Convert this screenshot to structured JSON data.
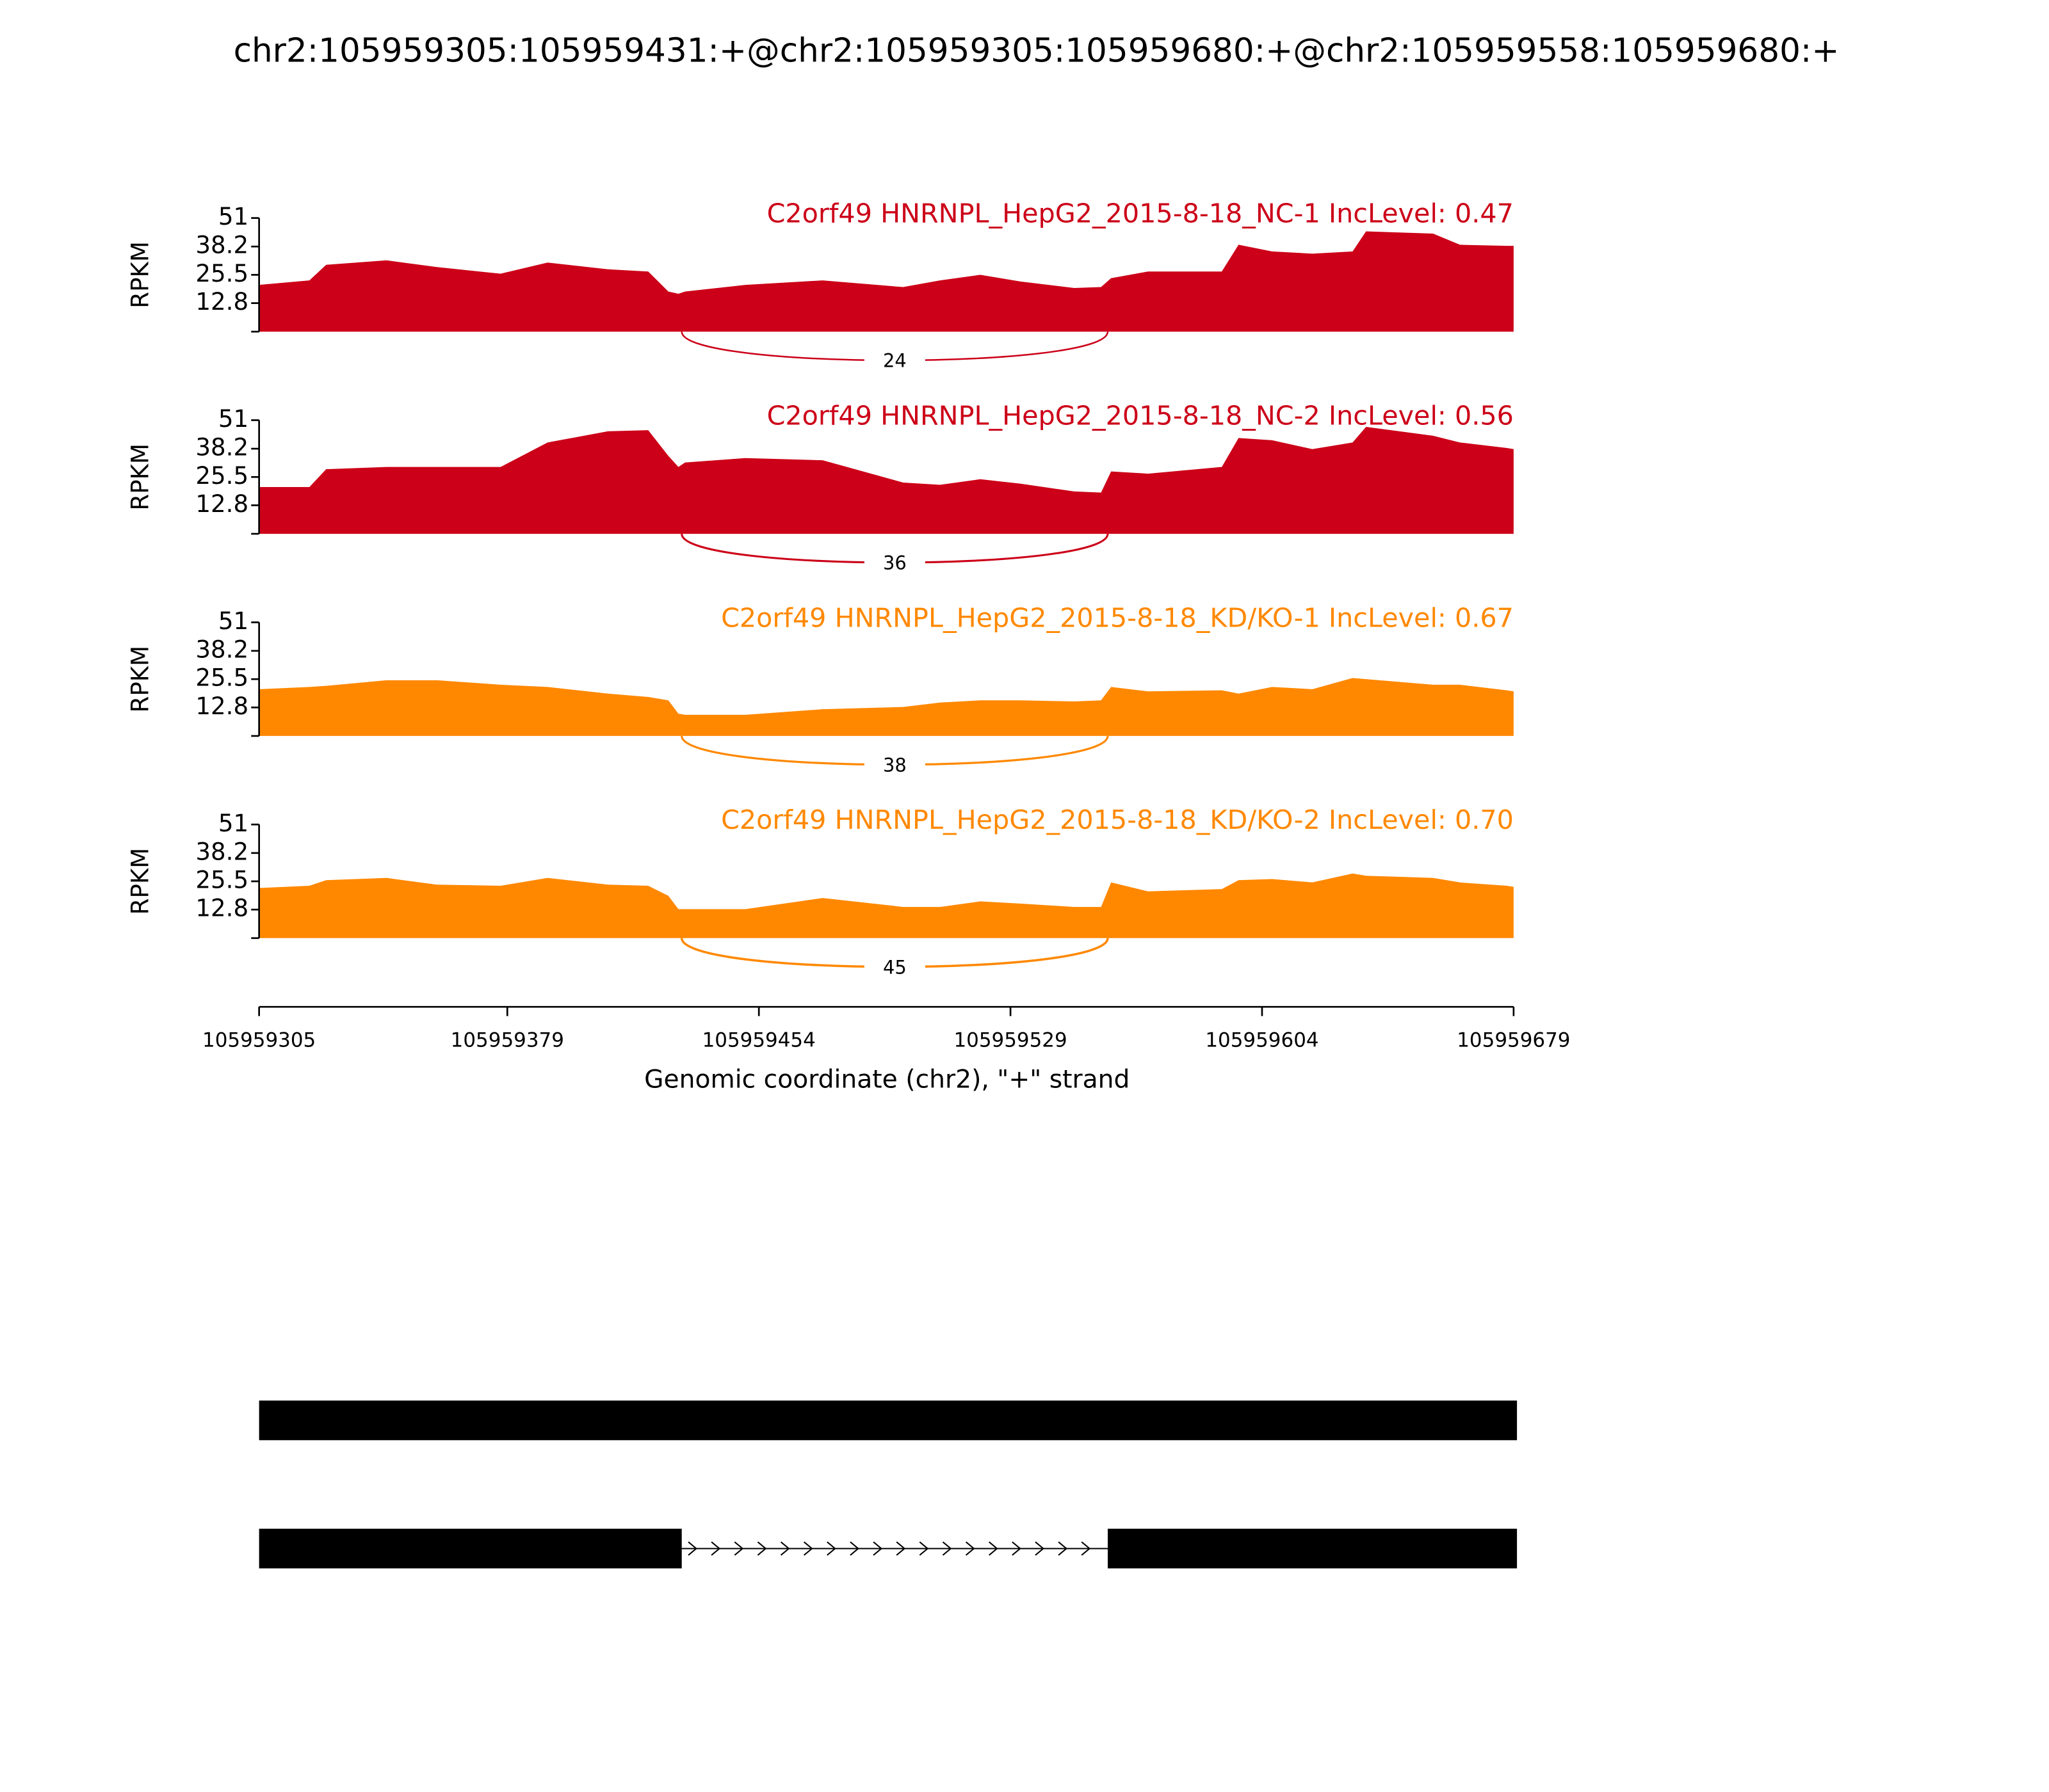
{
  "chart_data": {
    "type": "area",
    "title": "chr2:105959305:105959431:+@chr2:105959305:105959680:+@chr2:105959558:105959680:+",
    "xlabel": "Genomic coordinate (chr2), \"+\" strand",
    "ylabel": "RPKM",
    "x": [
      105959305,
      105959320,
      105959325,
      105959343,
      105959358,
      105959377,
      105959391,
      105959409,
      105959421,
      105959427,
      105959430,
      105959432,
      105959450,
      105959473,
      105959497,
      105959508,
      105959520,
      105959532,
      105959548,
      105959556,
      105959559,
      105959570,
      105959592,
      105959597,
      105959607,
      105959619,
      105959631,
      105959635,
      105959655,
      105959663,
      105959677,
      105959679
    ],
    "xlim": [
      105959305,
      105959679
    ],
    "xticks": [
      105959305,
      105959379,
      105959454,
      105959529,
      105959604,
      105959679
    ],
    "ylim": [
      0,
      51
    ],
    "yticks": [
      12.8,
      25.5,
      38.2,
      51
    ],
    "junction": {
      "start": 105959431,
      "end": 105959558
    },
    "series": [
      {
        "name": "C2orf49 HNRNPL_HepG2_2015-8-18_NC-1 IncLevel: 0.47",
        "color": "#cc0018",
        "junction_count": 24,
        "values": [
          21,
          23,
          30,
          32,
          29,
          26,
          31,
          28,
          27,
          18,
          17,
          18,
          21,
          23,
          20,
          23,
          25.5,
          22.5,
          19.6,
          20,
          24,
          27,
          27,
          39,
          36,
          35,
          36,
          45,
          44,
          39,
          38.5,
          38.5
        ]
      },
      {
        "name": "C2orf49 HNRNPL_HepG2_2015-8-18_NC-2 IncLevel: 0.56",
        "color": "#cc0018",
        "junction_count": 36,
        "values": [
          21,
          21,
          29,
          30,
          30,
          30,
          41,
          46,
          46.5,
          35,
          30,
          32,
          34,
          33,
          23,
          22,
          24.5,
          22.5,
          19,
          18.5,
          28,
          27,
          30,
          43,
          42,
          38,
          41,
          48,
          44,
          41,
          38.5,
          38
        ]
      },
      {
        "name": "C2orf49 HNRNPL_HepG2_2015-8-18_KD/KO-1 IncLevel: 0.67",
        "color": "#ff8800",
        "junction_count": 38,
        "values": [
          21,
          22,
          22.5,
          25,
          25,
          23,
          22,
          19,
          17.5,
          16,
          10,
          9.5,
          9.5,
          12,
          13,
          15,
          16,
          16,
          15.5,
          16,
          22,
          20,
          20.5,
          19,
          22,
          21,
          26,
          25.5,
          23,
          23,
          20.5,
          20
        ]
      },
      {
        "name": "C2orf49 HNRNPL_HepG2_2015-8-18_KD/KO-2 IncLevel: 0.70",
        "color": "#ff8800",
        "junction_count": 45,
        "values": [
          22.5,
          23.5,
          26,
          27,
          24,
          23.5,
          27,
          24,
          23.5,
          19,
          13,
          13,
          13,
          18,
          14,
          14,
          16.5,
          15.5,
          14,
          14,
          25,
          21,
          22,
          26,
          26.5,
          25,
          29,
          28,
          27,
          25,
          23.5,
          23
        ]
      }
    ],
    "transcripts": [
      [
        [
          105959305,
          105959680
        ]
      ],
      [
        [
          105959305,
          105959431
        ],
        [
          105959558,
          105959680
        ]
      ]
    ]
  }
}
